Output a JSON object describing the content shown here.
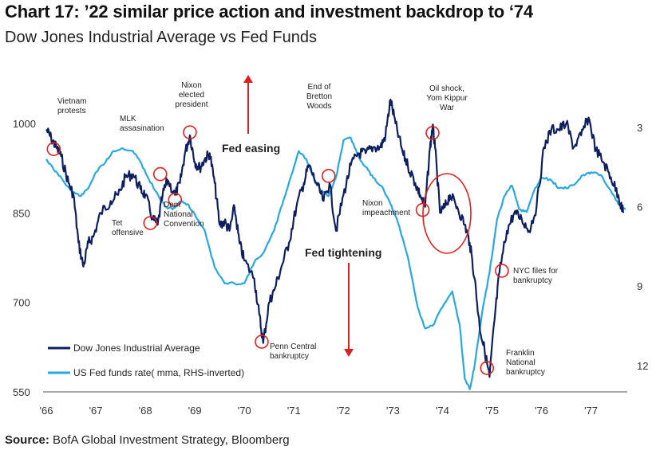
{
  "header": {
    "title": "Chart 17: ’22 similar price action and investment backdrop to ‘74",
    "subtitle": "Dow Jones Industrial Average vs Fed Funds"
  },
  "footer": {
    "source_label": "Source:",
    "source_text": "BofA Global Investment Strategy, Bloomberg"
  },
  "chart_data": {
    "type": "line",
    "title": "Chart 17: ’22 similar price action and investment backdrop to ‘74",
    "x_ticks": [
      "'66",
      "'67",
      "'68",
      "'69",
      "'70",
      "'71",
      "'72",
      "'73",
      "'74",
      "'75",
      "'76",
      "'77"
    ],
    "x_range": [
      1966.0,
      1977.7
    ],
    "y_left": {
      "ticks": [
        550,
        700,
        850,
        1000
      ],
      "range": [
        550,
        1060
      ]
    },
    "y_right": {
      "ticks": [
        3,
        6,
        9,
        12
      ],
      "range": [
        1.5,
        13.0
      ],
      "inverted": true
    },
    "legend": {
      "position": "bottom-left",
      "entries": [
        "Dow Jones Industrial Average",
        "US Fed funds rate( mma, RHS-inverted)"
      ]
    },
    "colors": {
      "dow": "#0e1f60",
      "fed": "#29a8e0",
      "circles": "#e02020",
      "arrows": "#e02020"
    },
    "series": [
      {
        "name": "Dow Jones Industrial Average",
        "axis": "left",
        "points": [
          [
            1966.0,
            990
          ],
          [
            1966.1,
            975
          ],
          [
            1966.2,
            960
          ],
          [
            1966.3,
            945
          ],
          [
            1966.45,
            900
          ],
          [
            1966.55,
            880
          ],
          [
            1966.65,
            800
          ],
          [
            1966.75,
            760
          ],
          [
            1966.85,
            800
          ],
          [
            1966.95,
            810
          ],
          [
            1967.1,
            850
          ],
          [
            1967.3,
            870
          ],
          [
            1967.45,
            880
          ],
          [
            1967.6,
            910
          ],
          [
            1967.75,
            915
          ],
          [
            1967.9,
            890
          ],
          [
            1968.0,
            880
          ],
          [
            1968.15,
            840
          ],
          [
            1968.25,
            830
          ],
          [
            1968.35,
            880
          ],
          [
            1968.45,
            905
          ],
          [
            1968.6,
            880
          ],
          [
            1968.7,
            900
          ],
          [
            1968.8,
            950
          ],
          [
            1968.9,
            980
          ],
          [
            1969.0,
            935
          ],
          [
            1969.1,
            925
          ],
          [
            1969.2,
            940
          ],
          [
            1969.3,
            950
          ],
          [
            1969.4,
            900
          ],
          [
            1969.5,
            830
          ],
          [
            1969.6,
            835
          ],
          [
            1969.7,
            820
          ],
          [
            1969.8,
            860
          ],
          [
            1969.9,
            800
          ],
          [
            1970.0,
            770
          ],
          [
            1970.2,
            740
          ],
          [
            1970.3,
            680
          ],
          [
            1970.38,
            632
          ],
          [
            1970.5,
            700
          ],
          [
            1970.6,
            720
          ],
          [
            1970.75,
            760
          ],
          [
            1970.9,
            800
          ],
          [
            1971.05,
            860
          ],
          [
            1971.2,
            900
          ],
          [
            1971.3,
            930
          ],
          [
            1971.45,
            900
          ],
          [
            1971.6,
            870
          ],
          [
            1971.72,
            900
          ],
          [
            1971.85,
            820
          ],
          [
            1972.0,
            880
          ],
          [
            1972.15,
            930
          ],
          [
            1972.3,
            950
          ],
          [
            1972.45,
            950
          ],
          [
            1972.6,
            960
          ],
          [
            1972.75,
            960
          ],
          [
            1972.85,
            980
          ],
          [
            1972.95,
            1040
          ],
          [
            1973.05,
            1000
          ],
          [
            1973.2,
            950
          ],
          [
            1973.3,
            930
          ],
          [
            1973.45,
            900
          ],
          [
            1973.55,
            880
          ],
          [
            1973.65,
            860
          ],
          [
            1973.75,
            960
          ],
          [
            1973.8,
            995
          ],
          [
            1973.85,
            960
          ],
          [
            1973.95,
            850
          ],
          [
            1974.05,
            860
          ],
          [
            1974.15,
            880
          ],
          [
            1974.3,
            860
          ],
          [
            1974.45,
            830
          ],
          [
            1974.55,
            800
          ],
          [
            1974.65,
            740
          ],
          [
            1974.75,
            660
          ],
          [
            1974.85,
            620
          ],
          [
            1974.95,
            575
          ],
          [
            1975.05,
            670
          ],
          [
            1975.15,
            750
          ],
          [
            1975.3,
            820
          ],
          [
            1975.45,
            850
          ],
          [
            1975.6,
            840
          ],
          [
            1975.75,
            820
          ],
          [
            1975.9,
            860
          ],
          [
            1976.05,
            960
          ],
          [
            1976.2,
            990
          ],
          [
            1976.35,
            990
          ],
          [
            1976.5,
            1000
          ],
          [
            1976.65,
            960
          ],
          [
            1976.8,
            980
          ],
          [
            1976.95,
            1010
          ],
          [
            1977.1,
            955
          ],
          [
            1977.25,
            935
          ],
          [
            1977.4,
            910
          ],
          [
            1977.55,
            880
          ],
          [
            1977.65,
            850
          ]
        ]
      },
      {
        "name": "US Fed funds rate( mma, RHS-inverted)",
        "axis": "right",
        "points": [
          [
            1966.0,
            4.2
          ],
          [
            1966.15,
            4.6
          ],
          [
            1966.3,
            4.9
          ],
          [
            1966.5,
            5.4
          ],
          [
            1966.7,
            5.6
          ],
          [
            1966.85,
            5.3
          ],
          [
            1967.0,
            4.7
          ],
          [
            1967.2,
            4.3
          ],
          [
            1967.35,
            3.9
          ],
          [
            1967.55,
            3.8
          ],
          [
            1967.75,
            3.9
          ],
          [
            1967.9,
            4.3
          ],
          [
            1968.0,
            4.7
          ],
          [
            1968.2,
            5.4
          ],
          [
            1968.4,
            6.0
          ],
          [
            1968.55,
            6.1
          ],
          [
            1968.7,
            5.8
          ],
          [
            1968.85,
            5.9
          ],
          [
            1969.0,
            6.3
          ],
          [
            1969.2,
            6.9
          ],
          [
            1969.4,
            8.3
          ],
          [
            1969.6,
            8.9
          ],
          [
            1969.8,
            8.9
          ],
          [
            1970.0,
            8.9
          ],
          [
            1970.2,
            8.1
          ],
          [
            1970.4,
            7.7
          ],
          [
            1970.6,
            6.9
          ],
          [
            1970.8,
            5.7
          ],
          [
            1970.95,
            4.8
          ],
          [
            1971.1,
            3.9
          ],
          [
            1971.25,
            4.2
          ],
          [
            1971.4,
            4.9
          ],
          [
            1971.55,
            5.4
          ],
          [
            1971.7,
            5.6
          ],
          [
            1971.85,
            4.9
          ],
          [
            1972.0,
            3.5
          ],
          [
            1972.15,
            3.4
          ],
          [
            1972.3,
            4.1
          ],
          [
            1972.45,
            4.5
          ],
          [
            1972.6,
            4.9
          ],
          [
            1972.8,
            5.3
          ],
          [
            1972.95,
            5.9
          ],
          [
            1973.1,
            6.6
          ],
          [
            1973.3,
            7.9
          ],
          [
            1973.5,
            9.8
          ],
          [
            1973.65,
            10.6
          ],
          [
            1973.8,
            10.5
          ],
          [
            1974.0,
            9.8
          ],
          [
            1974.2,
            9.2
          ],
          [
            1974.35,
            10.5
          ],
          [
            1974.45,
            12.5
          ],
          [
            1974.55,
            12.9
          ],
          [
            1974.65,
            12.0
          ],
          [
            1974.8,
            10.0
          ],
          [
            1974.95,
            8.5
          ],
          [
            1975.1,
            6.5
          ],
          [
            1975.25,
            5.6
          ],
          [
            1975.4,
            5.2
          ],
          [
            1975.55,
            6.1
          ],
          [
            1975.7,
            6.2
          ],
          [
            1975.85,
            5.4
          ],
          [
            1976.0,
            4.9
          ],
          [
            1976.2,
            5.0
          ],
          [
            1976.35,
            5.3
          ],
          [
            1976.5,
            5.3
          ],
          [
            1976.7,
            5.1
          ],
          [
            1976.85,
            4.8
          ],
          [
            1977.0,
            4.7
          ],
          [
            1977.2,
            4.8
          ],
          [
            1977.4,
            5.4
          ],
          [
            1977.55,
            5.9
          ],
          [
            1977.7,
            6.1
          ]
        ]
      }
    ],
    "annotations": [
      {
        "text": [
          "Vietnam",
          "protests"
        ],
        "circle": [
          1966.15,
          957
        ]
      },
      {
        "text": [
          "MLK",
          "assasination"
        ],
        "circle": [
          1968.3,
          915
        ]
      },
      {
        "text": [
          "Tet",
          "offensive"
        ],
        "circle": [
          1968.1,
          833
        ]
      },
      {
        "text": [
          "Dem",
          "National",
          "Convention"
        ],
        "circle": [
          1968.6,
          872
        ]
      },
      {
        "text": [
          "Nixon",
          "elected",
          "president"
        ],
        "circle": [
          1968.9,
          985
        ]
      },
      {
        "text": [
          "End of",
          "Bretton",
          "Woods"
        ],
        "circle": [
          1971.7,
          912
        ]
      },
      {
        "text": [
          "Oil shock,",
          "Yom Kippur",
          "War"
        ],
        "circle": [
          1973.8,
          984
        ]
      },
      {
        "text": [
          "Nixon",
          "impeachment"
        ],
        "circle": [
          1973.6,
          855
        ]
      },
      {
        "text": [
          "NYC files for",
          "bankruptcy"
        ],
        "circle": [
          1975.2,
          753
        ]
      },
      {
        "text": [
          "Penn Central",
          "bankruptcy"
        ],
        "circle": [
          1970.35,
          634
        ]
      },
      {
        "text": [
          "Franklin",
          "National",
          "bankruptcy"
        ],
        "circle": [
          1974.9,
          590
        ]
      }
    ],
    "labels": {
      "easing": "Fed easing",
      "tightening": "Fed tightening"
    }
  }
}
